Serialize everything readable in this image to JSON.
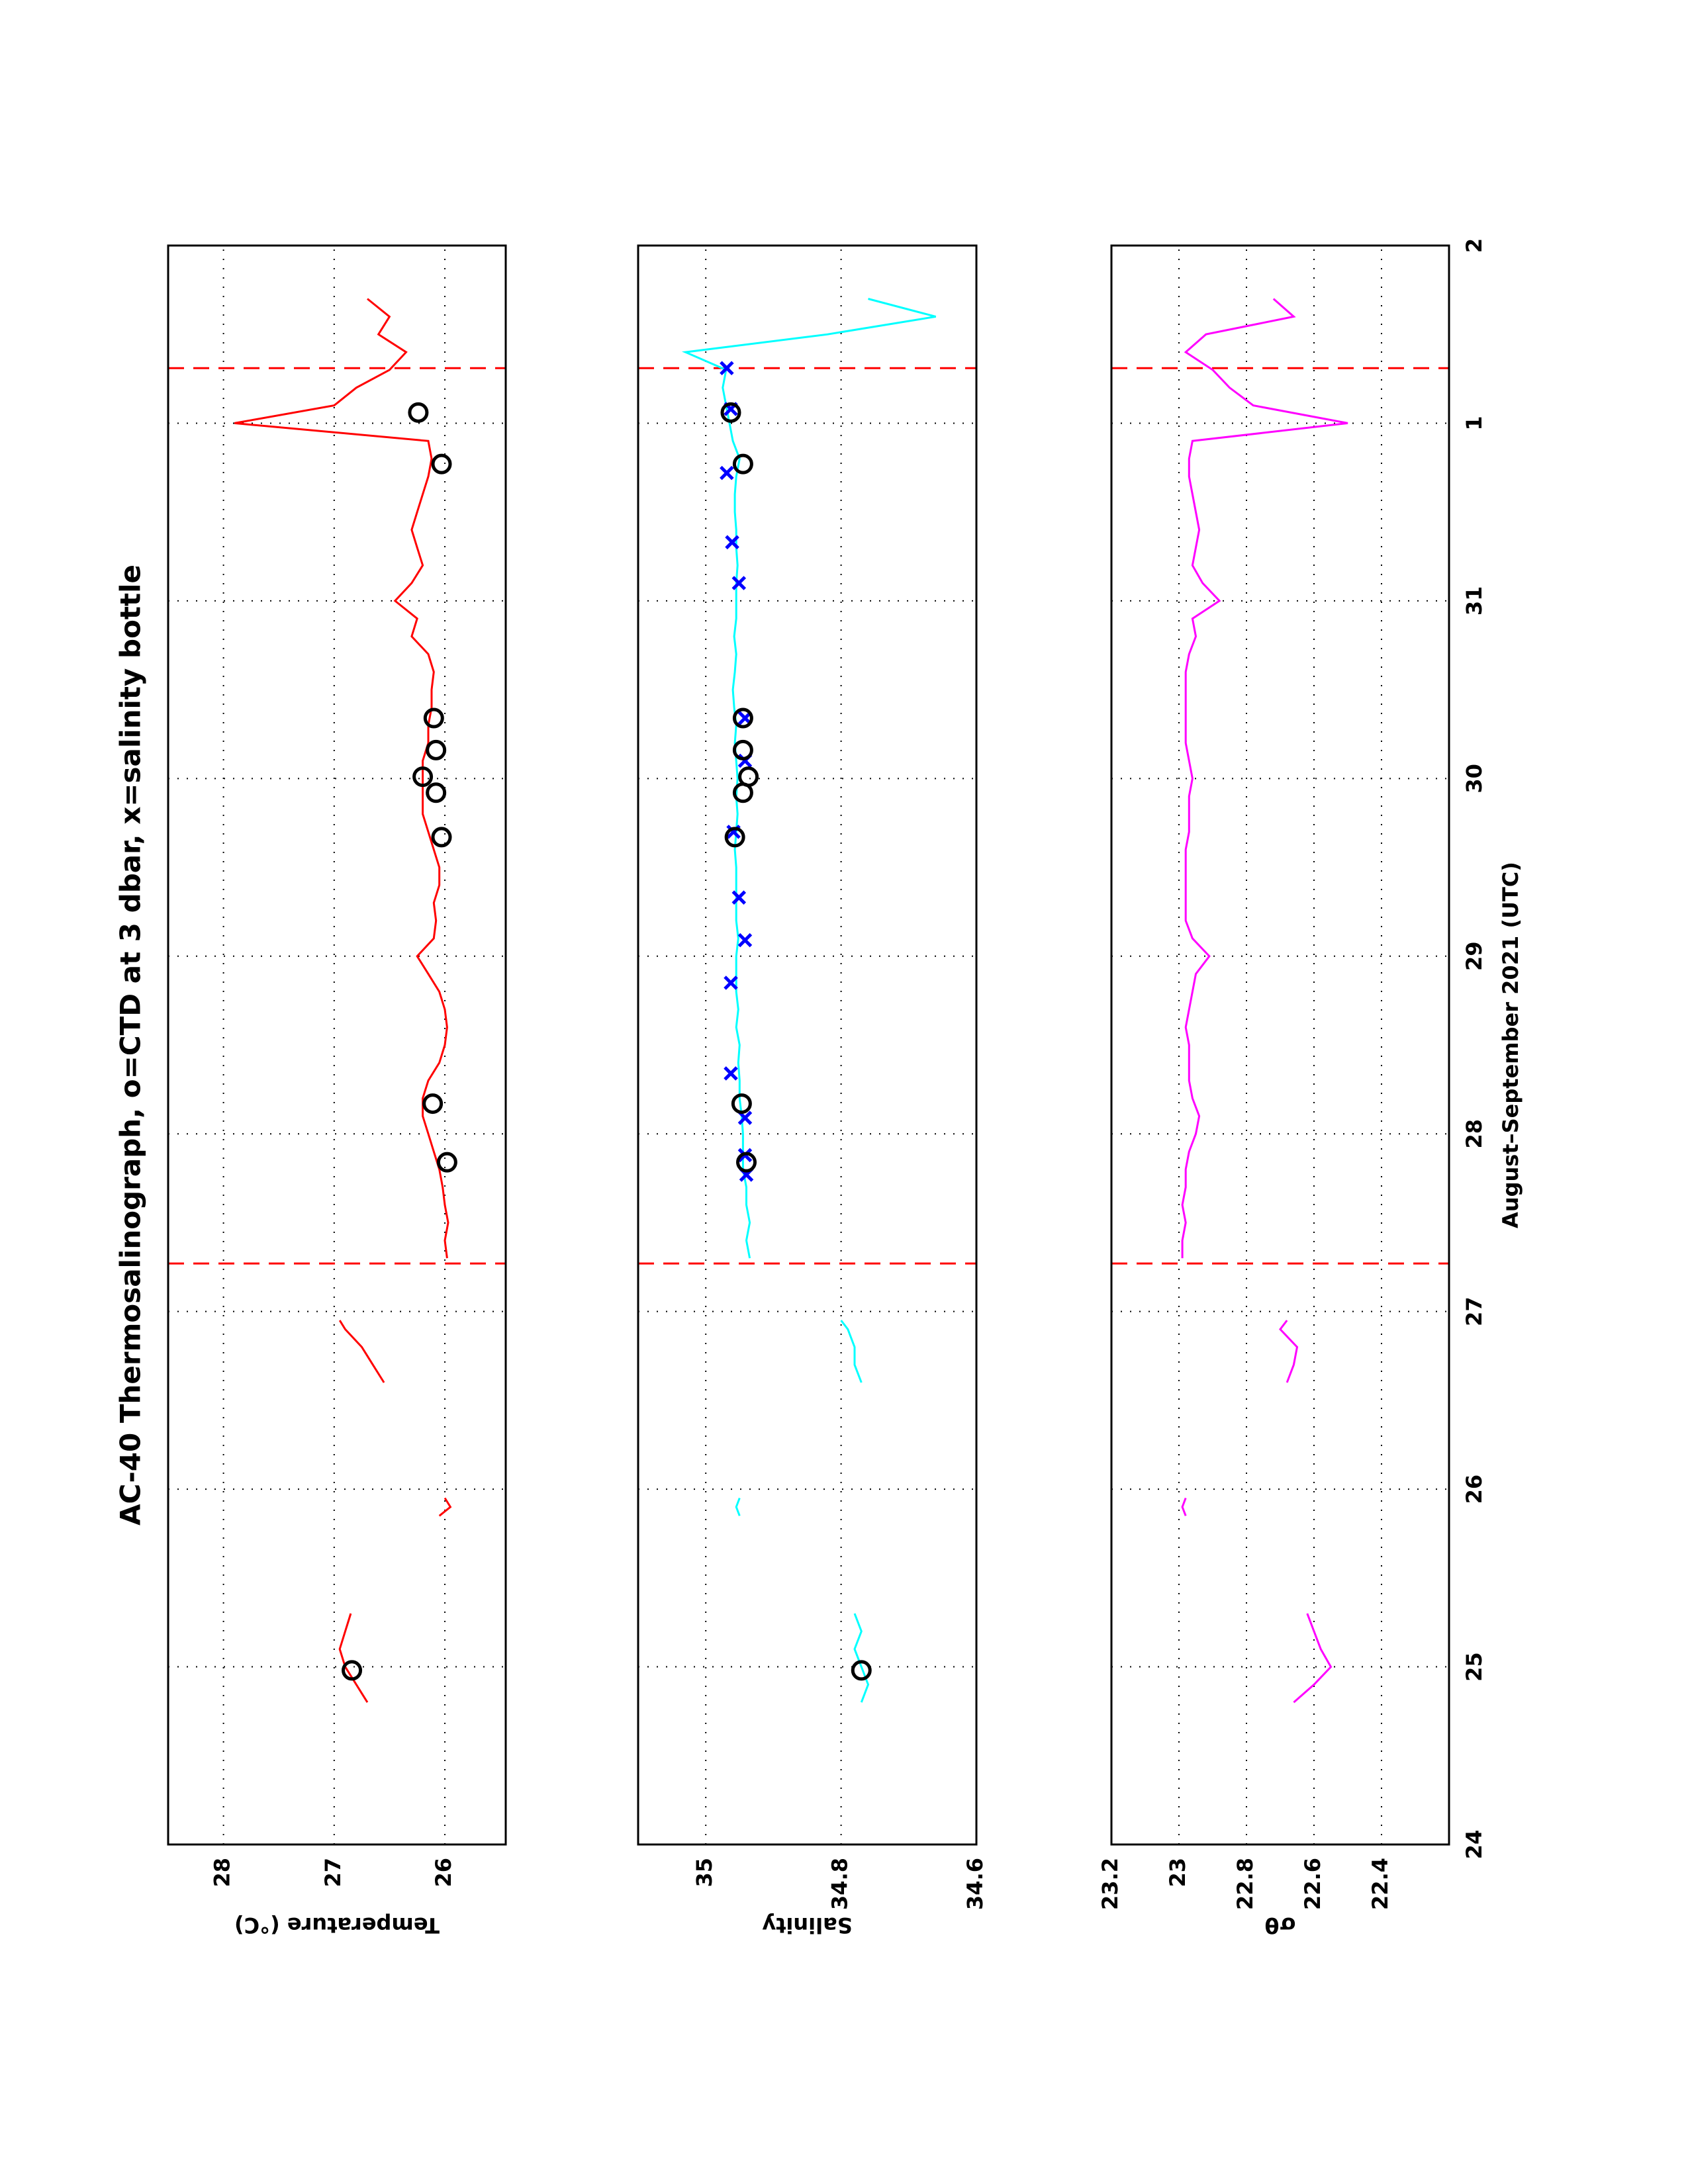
{
  "chart_data": [
    {
      "type": "line",
      "title": "AC-40 Thermosalinograph, o=CTD at 3 dbar, x=salinity bottle",
      "ylabel": "Temperature (°C)",
      "xlim": [
        24,
        33
      ],
      "xticks": [
        24,
        25,
        26,
        27,
        28,
        29,
        30,
        31,
        {
          "value": 32,
          "label": "1"
        },
        {
          "value": 33,
          "label": "2"
        }
      ],
      "show_xtick_labels": false,
      "ylim": [
        25.45,
        28.5
      ],
      "yticks": [
        26,
        27,
        28
      ],
      "grid": true,
      "vlines": [
        27.27,
        32.31
      ],
      "vline_color": "#ff0000",
      "series": [
        {
          "style": "line",
          "color": "#ff0000",
          "x": [
            24.8,
            24.9,
            25.0,
            25.1,
            25.2,
            25.3,
            25.6,
            25.85,
            25.9,
            25.95,
            26.3,
            26.6,
            26.7,
            26.8,
            26.9,
            26.95,
            27.1,
            27.3,
            27.4,
            27.5,
            27.6,
            27.7,
            27.8,
            27.9,
            28.0,
            28.1,
            28.2,
            28.3,
            28.4,
            28.5,
            28.6,
            28.7,
            28.8,
            28.9,
            29.0,
            29.1,
            29.2,
            29.3,
            29.4,
            29.5,
            29.6,
            29.7,
            29.8,
            29.9,
            30.0,
            30.1,
            30.2,
            30.3,
            30.4,
            30.5,
            30.6,
            30.7,
            30.8,
            30.9,
            31.0,
            31.1,
            31.2,
            31.3,
            31.4,
            31.5,
            31.6,
            31.7,
            31.8,
            31.9,
            32.0,
            32.1,
            32.2,
            32.3,
            32.4,
            32.5,
            32.6,
            32.7
          ],
          "values": [
            26.7,
            26.8,
            26.9,
            26.95,
            26.9,
            26.85,
            null,
            26.05,
            25.95,
            26.0,
            null,
            26.55,
            26.65,
            26.75,
            26.9,
            26.95,
            null,
            25.98,
            26.0,
            25.97,
            26.0,
            26.02,
            26.05,
            26.1,
            26.15,
            26.2,
            26.2,
            26.15,
            26.05,
            26.0,
            25.98,
            26.0,
            26.05,
            26.15,
            26.25,
            26.1,
            26.08,
            26.1,
            26.05,
            26.05,
            26.1,
            26.15,
            26.2,
            26.2,
            26.2,
            26.2,
            26.15,
            26.15,
            26.12,
            26.12,
            26.1,
            26.15,
            26.3,
            26.25,
            26.45,
            26.3,
            26.2,
            26.25,
            26.3,
            26.25,
            26.2,
            26.15,
            26.12,
            26.15,
            27.9,
            27.0,
            26.8,
            26.5,
            26.35,
            26.6,
            26.5,
            26.7
          ]
        },
        {
          "style": "circle",
          "color": "#000000",
          "x": [
            24.98,
            27.84,
            28.17,
            29.67,
            29.92,
            30.01,
            30.16,
            30.34,
            31.77,
            32.06
          ],
          "values": [
            26.84,
            25.98,
            26.11,
            26.03,
            26.08,
            26.2,
            26.08,
            26.1,
            26.03,
            26.24
          ]
        }
      ]
    },
    {
      "type": "line",
      "ylabel": "Salinity",
      "xlim": [
        24,
        33
      ],
      "xticks": [
        24,
        25,
        26,
        27,
        28,
        29,
        30,
        31,
        {
          "value": 32,
          "label": "1"
        },
        {
          "value": 33,
          "label": "2"
        }
      ],
      "show_xtick_labels": false,
      "ylim": [
        34.6,
        35.1
      ],
      "yticks": [
        34.6,
        34.8,
        35
      ],
      "grid": true,
      "vlines": [
        27.27,
        32.31
      ],
      "vline_color": "#ff0000",
      "series": [
        {
          "style": "line",
          "color": "#00ffff",
          "x": [
            24.8,
            24.9,
            25.0,
            25.1,
            25.2,
            25.3,
            25.6,
            25.85,
            25.9,
            25.95,
            26.3,
            26.6,
            26.7,
            26.8,
            26.9,
            26.95,
            27.1,
            27.3,
            27.4,
            27.5,
            27.6,
            27.7,
            27.8,
            27.9,
            28.0,
            28.1,
            28.2,
            28.3,
            28.4,
            28.5,
            28.6,
            28.7,
            28.8,
            28.9,
            29.0,
            29.1,
            29.2,
            29.3,
            29.4,
            29.5,
            29.6,
            29.7,
            29.8,
            29.9,
            30.0,
            30.1,
            30.2,
            30.3,
            30.4,
            30.5,
            30.6,
            30.7,
            30.8,
            30.9,
            31.0,
            31.1,
            31.2,
            31.3,
            31.4,
            31.5,
            31.6,
            31.7,
            31.8,
            31.9,
            32.0,
            32.1,
            32.2,
            32.3,
            32.4,
            32.5,
            32.6,
            32.7
          ],
          "values": [
            34.77,
            34.76,
            34.77,
            34.78,
            34.77,
            34.78,
            null,
            34.95,
            34.955,
            34.95,
            null,
            34.77,
            34.78,
            34.78,
            34.79,
            34.8,
            null,
            34.935,
            34.94,
            34.935,
            34.94,
            34.94,
            34.945,
            34.945,
            34.945,
            34.947,
            34.95,
            34.95,
            34.952,
            34.95,
            34.955,
            34.952,
            34.955,
            34.955,
            34.955,
            34.952,
            34.955,
            34.955,
            34.955,
            34.955,
            34.957,
            34.955,
            34.953,
            34.955,
            34.953,
            34.955,
            34.957,
            34.955,
            34.958,
            34.96,
            34.957,
            34.955,
            34.958,
            34.955,
            34.955,
            34.955,
            34.953,
            34.955,
            34.955,
            34.957,
            34.957,
            34.955,
            34.95,
            34.96,
            34.965,
            34.97,
            34.975,
            34.97,
            35.03,
            34.82,
            34.66,
            34.76
          ]
        },
        {
          "style": "cross",
          "color": "#0000ff",
          "x": [
            27.77,
            27.88,
            28.09,
            28.34,
            28.85,
            29.09,
            29.33,
            29.7,
            30.1,
            30.34,
            31.1,
            31.33,
            31.72,
            32.08,
            32.31
          ],
          "values": [
            34.94,
            34.942,
            34.942,
            34.963,
            34.963,
            34.942,
            34.951,
            34.959,
            34.942,
            34.942,
            34.951,
            34.961,
            34.969,
            34.963,
            34.969
          ]
        },
        {
          "style": "circle",
          "color": "#000000",
          "x": [
            24.98,
            27.84,
            28.17,
            29.67,
            29.92,
            30.01,
            30.16,
            30.34,
            31.77,
            32.06
          ],
          "values": [
            34.77,
            34.94,
            34.947,
            34.957,
            34.945,
            34.937,
            34.945,
            34.945,
            34.945,
            34.963
          ]
        }
      ]
    },
    {
      "type": "line",
      "ylabel": "σθ",
      "xlabel": "August–September 2021 (UTC)",
      "xlim": [
        24,
        33
      ],
      "xticks": [
        24,
        25,
        26,
        27,
        28,
        29,
        30,
        31,
        {
          "value": 32,
          "label": "1"
        },
        {
          "value": 33,
          "label": "2"
        }
      ],
      "show_xtick_labels": true,
      "ylim": [
        22.2,
        23.2
      ],
      "yticks": [
        22.4,
        22.6,
        22.8,
        23,
        23.2
      ],
      "grid": true,
      "vlines": [
        27.27,
        32.31
      ],
      "vline_color": "#ff0000",
      "series": [
        {
          "style": "line",
          "color": "#ff00ff",
          "x": [
            24.8,
            24.9,
            25.0,
            25.1,
            25.2,
            25.3,
            25.6,
            25.85,
            25.9,
            25.95,
            26.3,
            26.6,
            26.7,
            26.8,
            26.9,
            26.95,
            27.1,
            27.3,
            27.4,
            27.5,
            27.6,
            27.7,
            27.8,
            27.9,
            28.0,
            28.1,
            28.2,
            28.3,
            28.4,
            28.5,
            28.6,
            28.7,
            28.8,
            28.9,
            29.0,
            29.1,
            29.2,
            29.3,
            29.4,
            29.5,
            29.6,
            29.7,
            29.8,
            29.9,
            30.0,
            30.1,
            30.2,
            30.3,
            30.4,
            30.5,
            30.6,
            30.7,
            30.8,
            30.9,
            31.0,
            31.1,
            31.2,
            31.3,
            31.4,
            31.5,
            31.6,
            31.7,
            31.8,
            31.9,
            32.0,
            32.1,
            32.2,
            32.3,
            32.4,
            32.5,
            32.6,
            32.7
          ],
          "values": [
            22.66,
            22.6,
            22.55,
            22.58,
            22.6,
            22.62,
            null,
            22.98,
            22.99,
            22.98,
            null,
            22.68,
            22.66,
            22.65,
            22.7,
            22.68,
            null,
            22.99,
            22.99,
            22.98,
            22.99,
            22.98,
            22.98,
            22.97,
            22.95,
            22.94,
            22.96,
            22.97,
            22.97,
            22.97,
            22.98,
            22.97,
            22.96,
            22.95,
            22.91,
            22.96,
            22.98,
            22.98,
            22.98,
            22.98,
            22.98,
            22.97,
            22.97,
            22.97,
            22.96,
            22.97,
            22.98,
            22.98,
            22.98,
            22.98,
            22.98,
            22.97,
            22.95,
            22.96,
            22.88,
            22.93,
            22.96,
            22.95,
            22.94,
            22.95,
            22.96,
            22.97,
            22.97,
            22.96,
            22.5,
            22.78,
            22.85,
            22.9,
            22.98,
            22.92,
            22.66,
            22.72
          ]
        }
      ]
    }
  ]
}
